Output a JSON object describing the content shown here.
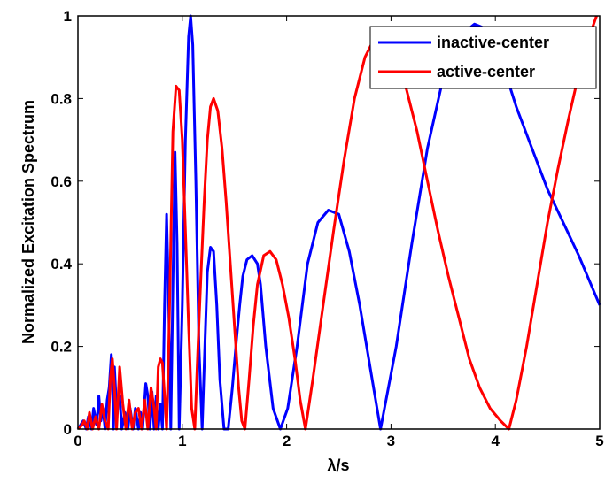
{
  "chart_data": {
    "type": "line",
    "xlabel": "λ/s",
    "ylabel": "Normalized Excitation Spectrum",
    "xlim": [
      0,
      5
    ],
    "ylim": [
      0,
      1
    ],
    "xticks": [
      "0",
      "1",
      "2",
      "3",
      "4",
      "5"
    ],
    "yticks": [
      "0",
      "0.2",
      "0.4",
      "0.6",
      "0.8",
      "1"
    ],
    "grid": false,
    "legend_position": "top-right",
    "series": [
      {
        "name": "inactive-center",
        "color": "#0000ff",
        "x": [
          0.0,
          0.05,
          0.08,
          0.1,
          0.13,
          0.15,
          0.18,
          0.2,
          0.22,
          0.24,
          0.26,
          0.28,
          0.3,
          0.32,
          0.33,
          0.34,
          0.35,
          0.37,
          0.4,
          0.42,
          0.45,
          0.48,
          0.5,
          0.53,
          0.55,
          0.58,
          0.6,
          0.62,
          0.65,
          0.67,
          0.69,
          0.71,
          0.73,
          0.75,
          0.77,
          0.79,
          0.81,
          0.83,
          0.85,
          0.87,
          0.89,
          0.91,
          0.93,
          0.95,
          0.97,
          1.0,
          1.03,
          1.06,
          1.08,
          1.1,
          1.13,
          1.16,
          1.19,
          1.21,
          1.24,
          1.27,
          1.3,
          1.33,
          1.36,
          1.4,
          1.44,
          1.48,
          1.52,
          1.55,
          1.58,
          1.62,
          1.67,
          1.72,
          1.75,
          1.8,
          1.87,
          1.94,
          2.01,
          2.1,
          2.2,
          2.3,
          2.4,
          2.5,
          2.6,
          2.7,
          2.8,
          2.9,
          3.05,
          3.2,
          3.35,
          3.5,
          3.65,
          3.8,
          3.9,
          4.0,
          4.1,
          4.2,
          4.35,
          4.5,
          4.65,
          4.8,
          4.9,
          5.0
        ],
        "y": [
          0.0,
          0.02,
          0.0,
          0.03,
          0.0,
          0.05,
          0.01,
          0.08,
          0.02,
          0.05,
          0.0,
          0.07,
          0.1,
          0.18,
          0.12,
          0.0,
          0.15,
          0.05,
          0.08,
          0.0,
          0.04,
          0.0,
          0.05,
          0.0,
          0.05,
          0.0,
          0.04,
          0.0,
          0.11,
          0.08,
          0.0,
          0.09,
          0.0,
          0.08,
          0.0,
          0.06,
          0.0,
          0.3,
          0.52,
          0.3,
          0.0,
          0.35,
          0.67,
          0.45,
          0.0,
          0.3,
          0.7,
          0.95,
          1.0,
          0.93,
          0.6,
          0.2,
          0.0,
          0.15,
          0.38,
          0.44,
          0.43,
          0.3,
          0.12,
          0.0,
          0.0,
          0.1,
          0.22,
          0.3,
          0.37,
          0.41,
          0.42,
          0.4,
          0.35,
          0.2,
          0.05,
          0.0,
          0.05,
          0.2,
          0.4,
          0.5,
          0.53,
          0.52,
          0.43,
          0.3,
          0.15,
          0.0,
          0.2,
          0.45,
          0.68,
          0.85,
          0.95,
          0.98,
          0.97,
          0.93,
          0.86,
          0.78,
          0.68,
          0.58,
          0.5,
          0.42,
          0.36,
          0.3
        ]
      },
      {
        "name": "active-center",
        "color": "#ff0000",
        "x": [
          0.0,
          0.04,
          0.06,
          0.09,
          0.11,
          0.14,
          0.17,
          0.2,
          0.23,
          0.26,
          0.29,
          0.31,
          0.33,
          0.35,
          0.37,
          0.4,
          0.43,
          0.46,
          0.49,
          0.52,
          0.55,
          0.58,
          0.61,
          0.64,
          0.67,
          0.7,
          0.73,
          0.75,
          0.77,
          0.79,
          0.81,
          0.83,
          0.85,
          0.87,
          0.89,
          0.91,
          0.94,
          0.97,
          1.0,
          1.03,
          1.06,
          1.09,
          1.12,
          1.15,
          1.18,
          1.21,
          1.24,
          1.27,
          1.3,
          1.34,
          1.38,
          1.42,
          1.46,
          1.5,
          1.54,
          1.57,
          1.6,
          1.64,
          1.68,
          1.72,
          1.78,
          1.84,
          1.9,
          1.96,
          2.02,
          2.08,
          2.13,
          2.18,
          2.25,
          2.35,
          2.45,
          2.55,
          2.65,
          2.75,
          2.85,
          2.95,
          3.05,
          3.15,
          3.25,
          3.35,
          3.45,
          3.55,
          3.65,
          3.75,
          3.85,
          3.95,
          4.05,
          4.13,
          4.2,
          4.3,
          4.4,
          4.5,
          4.6,
          4.7,
          4.8,
          4.9,
          4.97
        ],
        "y": [
          0.0,
          0.01,
          0.02,
          0.0,
          0.04,
          0.0,
          0.03,
          0.0,
          0.06,
          0.02,
          0.0,
          0.12,
          0.17,
          0.1,
          0.0,
          0.15,
          0.06,
          0.0,
          0.07,
          0.0,
          0.04,
          0.05,
          0.0,
          0.07,
          0.0,
          0.1,
          0.05,
          0.0,
          0.15,
          0.17,
          0.16,
          0.08,
          0.0,
          0.2,
          0.45,
          0.72,
          0.83,
          0.82,
          0.7,
          0.48,
          0.25,
          0.05,
          0.0,
          0.2,
          0.38,
          0.55,
          0.7,
          0.78,
          0.8,
          0.77,
          0.68,
          0.55,
          0.4,
          0.25,
          0.1,
          0.02,
          0.0,
          0.12,
          0.25,
          0.35,
          0.42,
          0.43,
          0.41,
          0.35,
          0.27,
          0.17,
          0.07,
          0.0,
          0.12,
          0.3,
          0.48,
          0.65,
          0.8,
          0.9,
          0.95,
          0.94,
          0.9,
          0.82,
          0.72,
          0.6,
          0.48,
          0.37,
          0.27,
          0.17,
          0.1,
          0.05,
          0.02,
          0.0,
          0.07,
          0.2,
          0.35,
          0.5,
          0.63,
          0.75,
          0.86,
          0.95,
          1.0
        ]
      }
    ]
  }
}
